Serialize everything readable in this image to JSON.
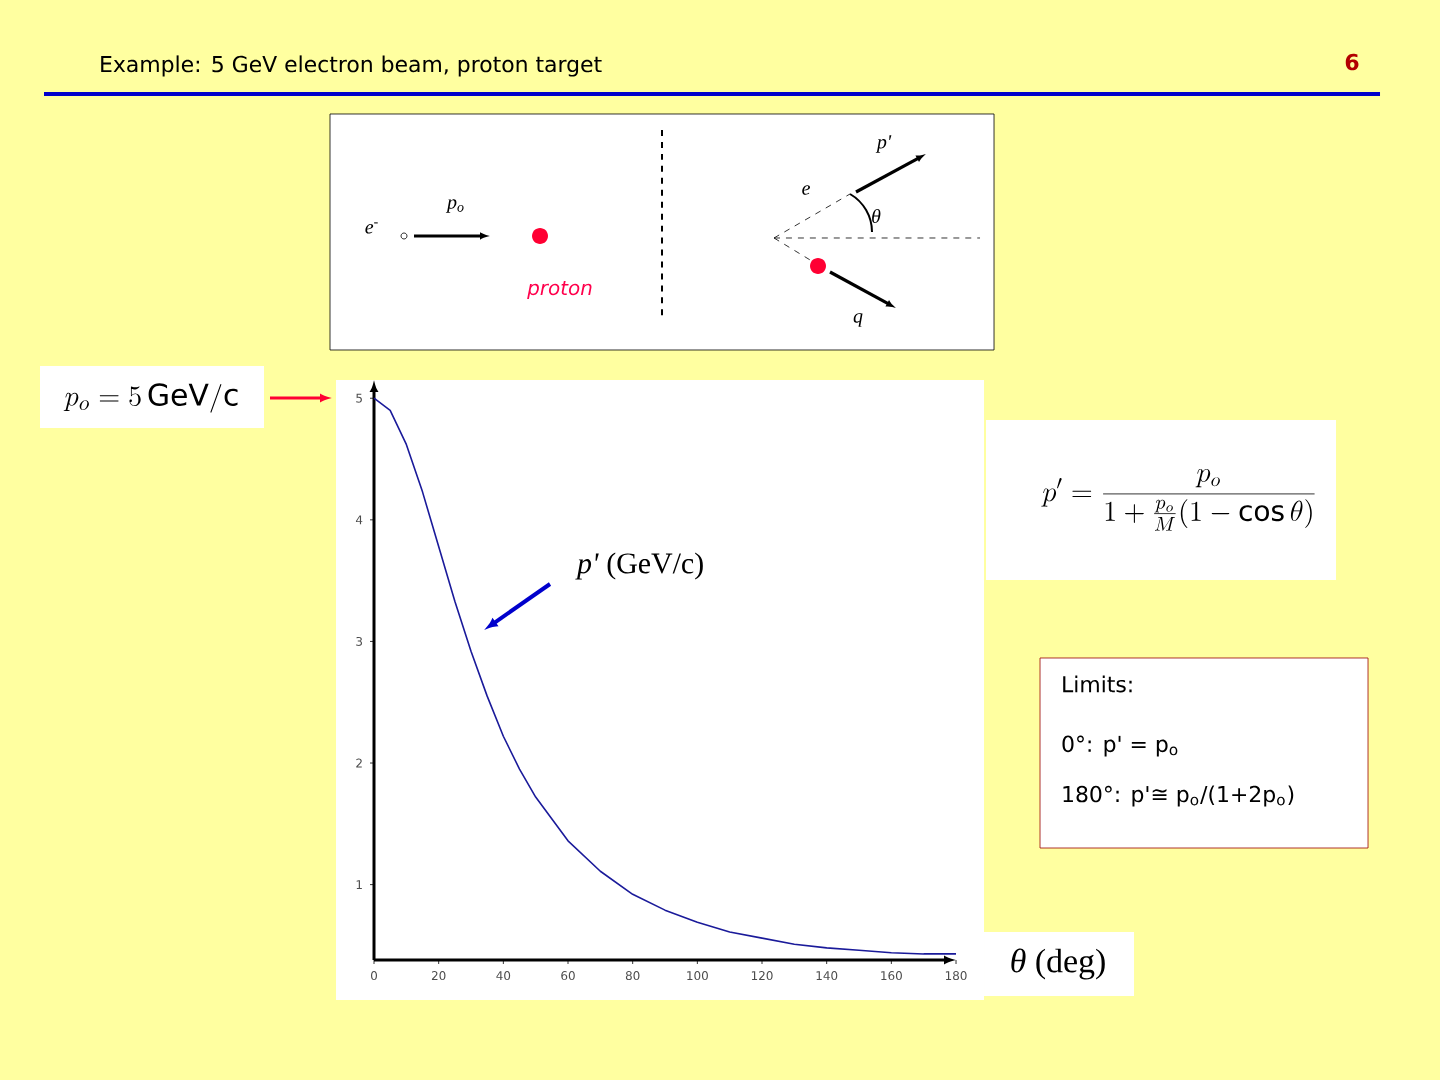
{
  "chart_data": {
    "type": "line",
    "title": "Example:  5 GeV electron beam, proton target",
    "xlabel": "*θ* (deg)",
    "ylabel": "*p'* (GeV/c)",
    "x": [
      0,
      5,
      10,
      15,
      20,
      25,
      30,
      35,
      40,
      45,
      50,
      60,
      70,
      80,
      90,
      100,
      110,
      120,
      130,
      140,
      150,
      160,
      170,
      180
    ],
    "series": [
      {
        "color": "#1a1a9a",
        "values": [
          5.0,
          4.9,
          4.62,
          4.23,
          3.78,
          3.33,
          2.92,
          2.55,
          2.22,
          1.95,
          1.72,
          1.36,
          1.11,
          0.92,
          0.79,
          0.69,
          0.61,
          0.56,
          0.51,
          0.48,
          0.46,
          0.44,
          0.43,
          0.43
        ]
      }
    ],
    "xlim": [
      0,
      180
    ],
    "ylim": [
      0.38,
      5.15
    ],
    "xticks": [
      0,
      20,
      40,
      60,
      80,
      100,
      120,
      140,
      160,
      180
    ],
    "yticks": [
      1,
      2,
      3,
      4,
      5
    ],
    "annotations": [
      "6",
      "proton",
      "e$^{-}$",
      "p$_{o}$",
      "e",
      "p'",
      "θ",
      "q",
      "p_o = 5\\,\\mathrm{GeV/c}",
      "p' = \\frac{p_o}{1+\\frac{p_o}{M}(1-\\cos\\theta)}",
      "Limits:",
      "0°:  p' = p$_{o}$",
      "180°:  p'≅ p$_{o}$/(1+2p$_{o}$)"
    ]
  }
}
